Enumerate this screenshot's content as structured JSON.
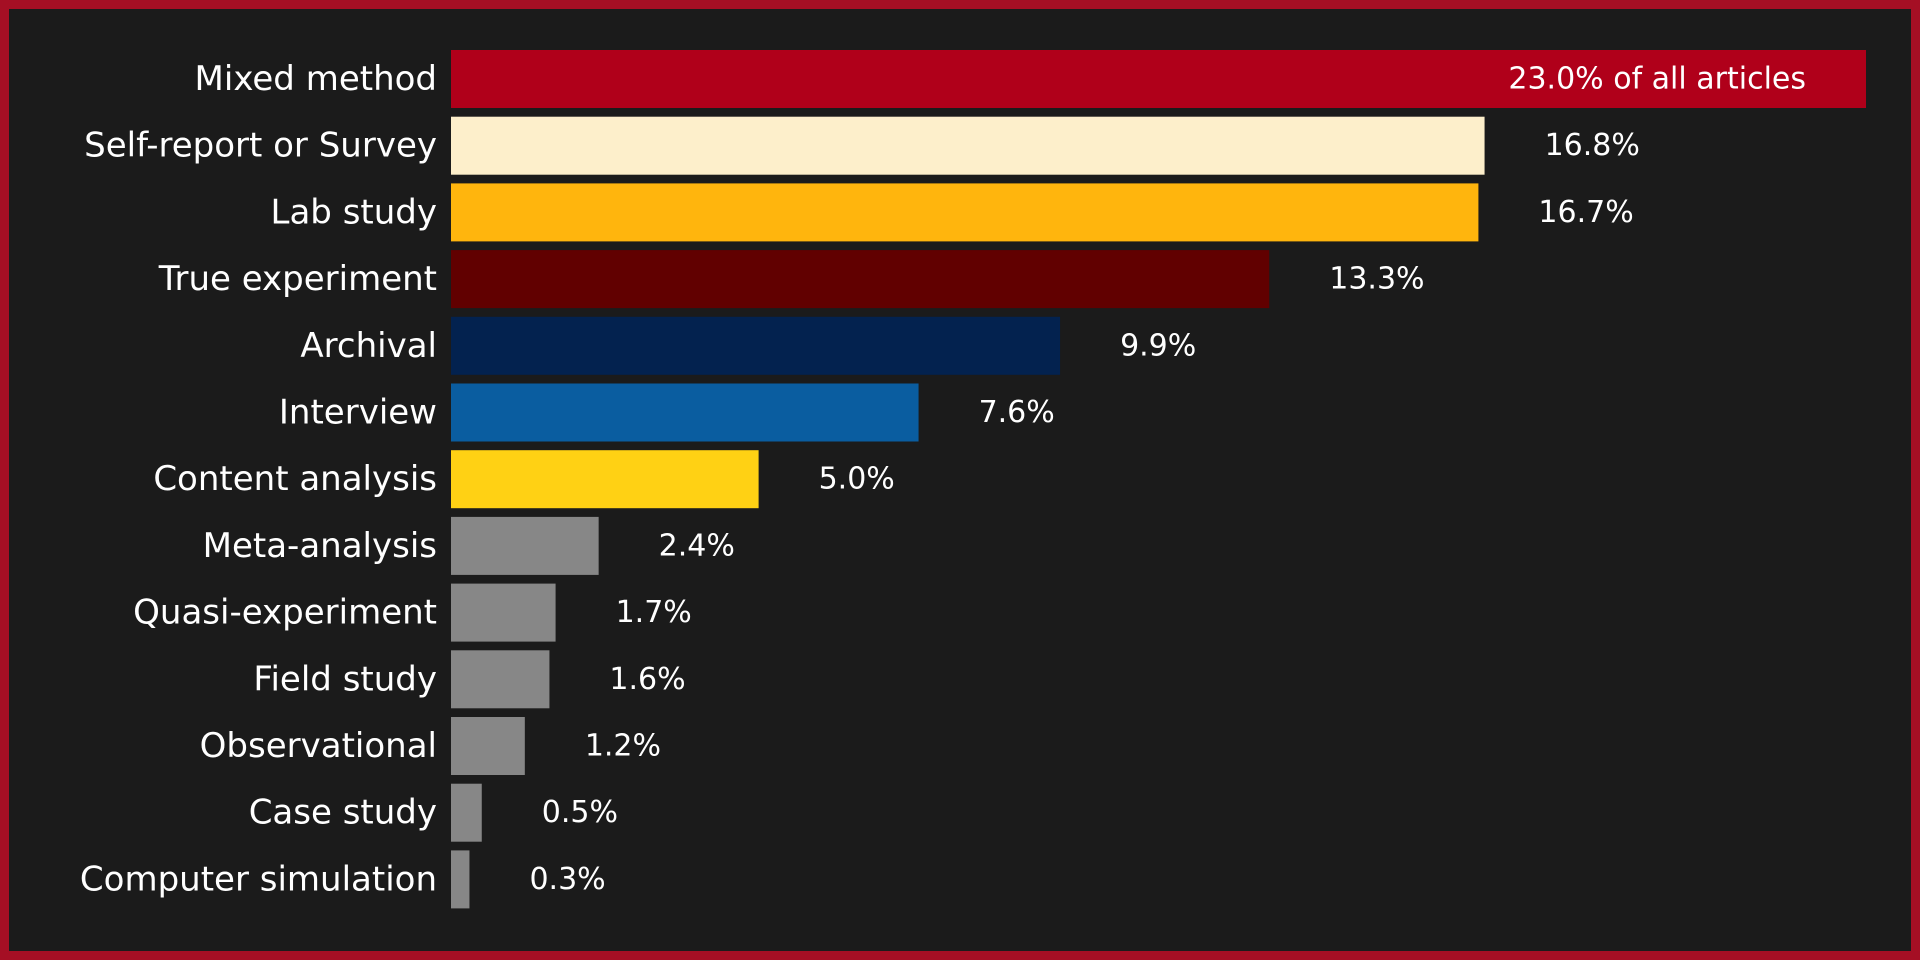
{
  "chart_data": {
    "type": "bar",
    "orientation": "horizontal",
    "categories": [
      "Mixed method",
      "Self-report or Survey",
      "Lab study",
      "True experiment",
      "Archival",
      "Interview",
      "Content analysis",
      "Meta-analysis",
      "Quasi-experiment",
      "Field study",
      "Observational",
      "Case study",
      "Computer simulation"
    ],
    "values": [
      23.0,
      16.8,
      16.7,
      13.3,
      9.9,
      7.6,
      5.0,
      2.4,
      1.7,
      1.6,
      1.2,
      0.5,
      0.3
    ],
    "value_labels": [
      "23.0% of all articles",
      "16.8%",
      "16.7%",
      "13.3%",
      "9.9%",
      "7.6%",
      "5.0%",
      "2.4%",
      "1.7%",
      "1.6%",
      "1.2%",
      "0.5%",
      "0.3%"
    ],
    "colors": [
      "#b0001a",
      "#fdefcb",
      "#ffb50d",
      "#610000",
      "#03224f",
      "#0a5da0",
      "#ffd114",
      "#878787",
      "#878787",
      "#878787",
      "#878787",
      "#878787",
      "#878787"
    ],
    "xlim": [
      0,
      23.0
    ],
    "grid": false,
    "legend": "none",
    "title": "",
    "xlabel": "",
    "ylabel": ""
  },
  "colors": {
    "background": "#1b1b1b",
    "border": "#a50f24",
    "text": "#ffffff"
  }
}
